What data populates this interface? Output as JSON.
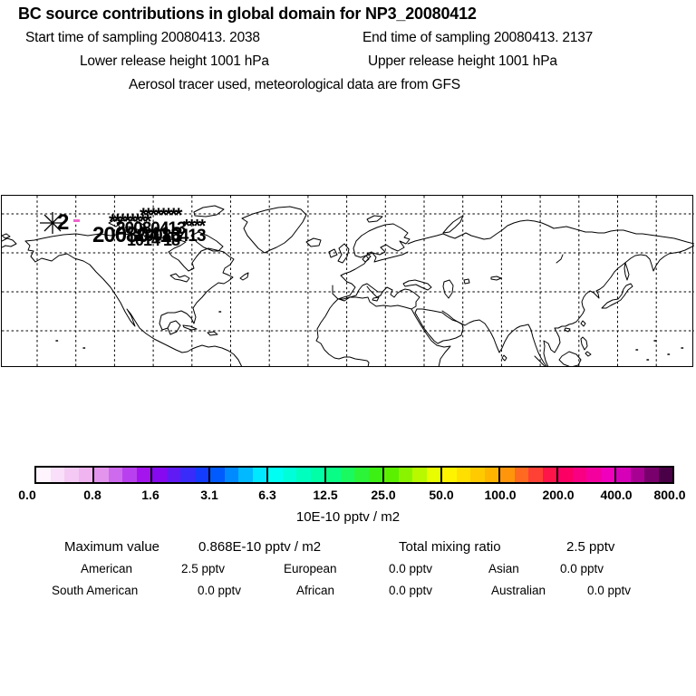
{
  "header": {
    "title": "BC  source contributions in global domain for NP3_20080412",
    "start_time": "Start time of sampling 20080413.  2038",
    "end_time": "End time of sampling 20080413.  2137",
    "lower_release": "Lower release height 1001 hPa",
    "upper_release": "Upper release height 1001 hPa",
    "tracer_info": "Aerosol tracer used, meteorological data are from GFS"
  },
  "map": {
    "marker_label": "2",
    "marker_symbol": "star-asterisk",
    "marker_color": "#000000",
    "marker_tick_color": "#ee66cc",
    "cluster_labels": [
      "20080413",
      "20080413",
      "20080413",
      "********",
      "********",
      "****",
      "1014 18"
    ]
  },
  "colorbar": {
    "tick_labels": [
      "0.0",
      "0.8",
      "1.6",
      "3.1",
      "6.3",
      "12.5",
      "25.0",
      "50.0",
      "100.0",
      "200.0",
      "400.0",
      "800.0"
    ],
    "units": "10E-10 pptv / m2",
    "stop_colors": [
      "#ffffff",
      "#eeaaee",
      "#9900ee",
      "#0044ff",
      "#00ffff",
      "#00ff99",
      "#44ee00",
      "#ffff00",
      "#ffaa00",
      "#ff0055",
      "#ee00cc",
      "#330033"
    ]
  },
  "stats": {
    "max_label": "Maximum value",
    "max_value": "0.868E-10 pptv / m2",
    "total_label": "Total mixing ratio",
    "total_value": "2.5 pptv",
    "regions": [
      {
        "name": "American",
        "value": "2.5 pptv"
      },
      {
        "name": "European",
        "value": "0.0 pptv"
      },
      {
        "name": "Asian",
        "value": "0.0 pptv"
      },
      {
        "name": "South American",
        "value": "0.0 pptv"
      },
      {
        "name": "African",
        "value": "0.0 pptv"
      },
      {
        "name": "Australian",
        "value": "0.0 pptv"
      }
    ]
  },
  "chart_data": {
    "type": "heatmap",
    "title": "BC  source contributions in global domain for NP3_20080412",
    "map_extent": "equirectangular world map, lat 0N to 90N, lon 180W to 180E, dashed 20-degree graticule",
    "colorbar": {
      "tick_values": [
        0.0,
        0.8,
        1.6,
        3.1,
        6.3,
        12.5,
        25.0,
        50.0,
        100.0,
        200.0,
        400.0,
        800.0
      ],
      "units": "10E-10 pptv / m2",
      "stop_colors": [
        "#ffffff",
        "#eeaaee",
        "#9900ee",
        "#0044ff",
        "#00ffff",
        "#00ff99",
        "#44ee00",
        "#ffff00",
        "#ffaa00",
        "#ff0055",
        "#ee00cc",
        "#330033"
      ]
    },
    "receptor_marker": {
      "label": "2",
      "symbol": "star"
    },
    "max_value": "0.868E-10 pptv / m2",
    "total_mixing_ratio": "2.5 pptv",
    "source_contributions": [
      {
        "region": "American",
        "value_pptv": 2.5
      },
      {
        "region": "European",
        "value_pptv": 0.0
      },
      {
        "region": "Asian",
        "value_pptv": 0.0
      },
      {
        "region": "South American",
        "value_pptv": 0.0
      },
      {
        "region": "African",
        "value_pptv": 0.0
      },
      {
        "region": "Australian",
        "value_pptv": 0.0
      }
    ]
  }
}
